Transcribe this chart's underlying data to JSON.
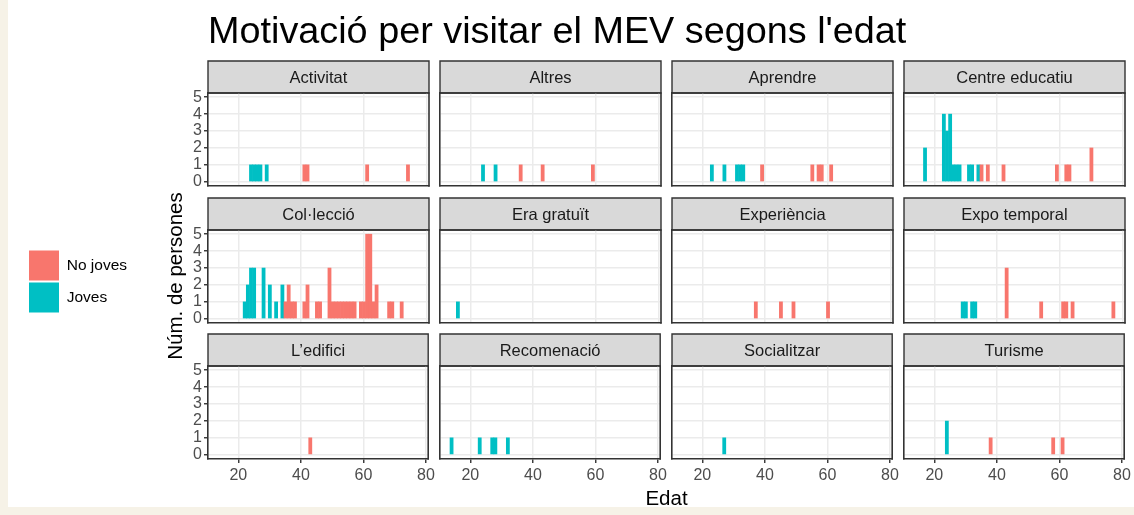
{
  "chart_data": [
    {
      "type": "other",
      "title": "Motivació per visitar el MEV segons l'edat",
      "xlabel": "Edat",
      "ylabel": "Núm. de persones"
    },
    {
      "type": "histogram",
      "title": "Activitat",
      "bins": [
        13.5,
        14.5,
        15.5,
        16.5,
        17.5,
        18.5,
        19.5,
        20.5,
        21.5,
        22.5,
        23.5,
        24.5,
        25.5,
        26.5,
        27.5,
        28.5,
        29.5,
        30.5,
        31.5,
        32.5,
        33.5,
        34.5,
        35.5,
        36.5,
        37.5,
        38.5,
        39.5,
        40.5,
        41.5,
        42.5,
        43.5,
        44.5,
        45.5,
        46.5,
        47.5,
        48.5,
        49.5,
        50.5,
        51.5,
        52.5,
        53.5,
        54.5,
        55.5,
        56.5,
        57.5,
        58.5,
        59.5,
        60.5,
        61.5,
        62.5,
        63.5,
        64.5,
        65.5,
        66.5,
        67.5,
        68.5,
        69.5,
        70.5,
        71.5,
        72.5,
        73.5,
        74.5,
        75.5,
        76.5,
        77.5
      ],
      "values": [
        0,
        0,
        0,
        0,
        0,
        0,
        0,
        0,
        0,
        0,
        1,
        1,
        1,
        1,
        0,
        1,
        0,
        0,
        0,
        0,
        0,
        0,
        0,
        0,
        0,
        0,
        0,
        1,
        1,
        0,
        0,
        0,
        0,
        0,
        0,
        0,
        0,
        0,
        0,
        0,
        0,
        0,
        0,
        0,
        0,
        0,
        0,
        1,
        0,
        0,
        0,
        0,
        0,
        0,
        0,
        0,
        0,
        0,
        0,
        0,
        1,
        0,
        0,
        0
      ],
      "colors": [
        null,
        null,
        null,
        null,
        null,
        null,
        null,
        null,
        null,
        null,
        "#00bfc4",
        "#00bfc4",
        "#00bfc4",
        "#00bfc4",
        null,
        "#00bfc4",
        null,
        null,
        null,
        null,
        null,
        null,
        null,
        null,
        null,
        null,
        null,
        "#f8766d",
        "#f8766d",
        null,
        null,
        null,
        null,
        null,
        null,
        null,
        null,
        null,
        null,
        null,
        null,
        null,
        null,
        null,
        null,
        null,
        null,
        "#f8766d",
        null,
        null,
        null,
        null,
        null,
        null,
        null,
        null,
        null,
        null,
        null,
        null,
        "#f8766d",
        null,
        null,
        null
      ],
      "xlim": [
        10.3,
        80.7
      ],
      "xticks": [
        20,
        40,
        60,
        80
      ],
      "ylim": [
        -0.25,
        5.25
      ],
      "yticks": [
        0,
        1,
        2,
        3,
        4,
        5
      ],
      "grid": true,
      "tick_labels": "y"
    },
    {
      "type": "bar",
      "title": "Altres",
      "stacked": true,
      "x": [
        14,
        15,
        16,
        17,
        18,
        19,
        20,
        21,
        22,
        23,
        24,
        25,
        26,
        27,
        28,
        29,
        30,
        31,
        32,
        33,
        34,
        35,
        36,
        37,
        38,
        39,
        40,
        41,
        42,
        43,
        44,
        45,
        46,
        47,
        48,
        49,
        50,
        51,
        52,
        53,
        54,
        55,
        56,
        57,
        58,
        59,
        60,
        61,
        62,
        63,
        64,
        65,
        66,
        67,
        68,
        69,
        70,
        71,
        72,
        73,
        74,
        75,
        76,
        77
      ],
      "series": [
        {
          "color": "#f8766d",
          "values": [
            0,
            0,
            0,
            0,
            0,
            0,
            0,
            0,
            0,
            0,
            0,
            0,
            0,
            0,
            0,
            0,
            0,
            0,
            0,
            0,
            0,
            0,
            1,
            0,
            0,
            0,
            0,
            0,
            0,
            1,
            0,
            0,
            0,
            0,
            0,
            0,
            0,
            0,
            0,
            0,
            0,
            0,
            0,
            0,
            0,
            1,
            0,
            0,
            0,
            0,
            0,
            0,
            0,
            0,
            0,
            0,
            0,
            0,
            0,
            0,
            0,
            0,
            0,
            0
          ]
        },
        {
          "color": "#00bfc4",
          "values": [
            0,
            0,
            0,
            0,
            0,
            0,
            0,
            0,
            0,
            0,
            1,
            0,
            0,
            0,
            1,
            0,
            0,
            0,
            0,
            0,
            0,
            0,
            0,
            0,
            0,
            0,
            0,
            0,
            0,
            0,
            0,
            0,
            0,
            0,
            0,
            0,
            0,
            0,
            0,
            0,
            0,
            0,
            0,
            0,
            0,
            0,
            0,
            0,
            0,
            0,
            0,
            0,
            0,
            0,
            0,
            0,
            0,
            0,
            0,
            0,
            0,
            0,
            0,
            0
          ]
        }
      ],
      "xlim": [
        10.3,
        80.7
      ],
      "xticks": [
        20,
        40,
        60,
        80
      ],
      "ylim": [
        -0.25,
        5.25
      ],
      "yticks": [
        0,
        1,
        2,
        3,
        4,
        5
      ],
      "grid": true,
      "tick_labels": false
    },
    {
      "type": "bar",
      "title": "Aprendre",
      "stacked": true,
      "x": [
        14,
        15,
        16,
        17,
        18,
        19,
        20,
        21,
        22,
        23,
        24,
        25,
        26,
        27,
        28,
        29,
        30,
        31,
        32,
        33,
        34,
        35,
        36,
        37,
        38,
        39,
        40,
        41,
        42,
        43,
        44,
        45,
        46,
        47,
        48,
        49,
        50,
        51,
        52,
        53,
        54,
        55,
        56,
        57,
        58,
        59,
        60,
        61,
        62,
        63,
        64,
        65,
        66,
        67,
        68,
        69,
        70,
        71,
        72,
        73,
        74,
        75,
        76,
        77
      ],
      "series": [
        {
          "color": "#f8766d",
          "values": [
            0,
            0,
            0,
            0,
            0,
            0,
            0,
            0,
            0,
            0,
            0,
            0,
            0,
            0,
            0,
            0,
            0,
            0,
            0,
            0,
            0,
            0,
            0,
            0,
            0,
            1,
            0,
            0,
            0,
            0,
            0,
            0,
            0,
            0,
            0,
            0,
            0,
            0,
            0,
            0,
            0,
            1,
            0,
            1,
            1,
            0,
            0,
            1,
            0,
            0,
            0,
            0,
            0,
            0,
            0,
            0,
            0,
            0,
            0,
            0,
            0,
            0,
            0,
            0
          ]
        },
        {
          "color": "#00bfc4",
          "values": [
            0,
            0,
            0,
            0,
            0,
            0,
            0,
            0,
            0,
            1,
            0,
            0,
            0,
            1,
            0,
            0,
            0,
            1,
            1,
            1,
            0,
            0,
            0,
            0,
            0,
            0,
            0,
            0,
            0,
            0,
            0,
            0,
            0,
            0,
            0,
            0,
            0,
            0,
            0,
            0,
            0,
            0,
            0,
            0,
            0,
            0,
            0,
            0,
            0,
            0,
            0,
            0,
            0,
            0,
            0,
            0,
            0,
            0,
            0,
            0,
            0,
            0,
            0,
            0
          ]
        }
      ],
      "xlim": [
        10.3,
        80.7
      ],
      "xticks": [
        20,
        40,
        60,
        80
      ],
      "ylim": [
        -0.25,
        5.25
      ],
      "yticks": [
        0,
        1,
        2,
        3,
        4,
        5
      ],
      "grid": true,
      "tick_labels": false
    },
    {
      "type": "bar",
      "title": "Centre educatiu",
      "stacked": true,
      "x": [
        14,
        15,
        16,
        17,
        18,
        19,
        20,
        21,
        22,
        23,
        24,
        25,
        26,
        27,
        28,
        29,
        30,
        31,
        32,
        33,
        34,
        35,
        36,
        37,
        38,
        39,
        40,
        41,
        42,
        43,
        44,
        45,
        46,
        47,
        48,
        49,
        50,
        51,
        52,
        53,
        54,
        55,
        56,
        57,
        58,
        59,
        60,
        61,
        62,
        63,
        64,
        65,
        66,
        67,
        68,
        69,
        70,
        71,
        72,
        73,
        74,
        75,
        76,
        77
      ],
      "series": [
        {
          "color": "#f8766d",
          "values": [
            0,
            0,
            0,
            0,
            0,
            0,
            0,
            0,
            0,
            0,
            0,
            0,
            0,
            0,
            0,
            0,
            0,
            0,
            0,
            0,
            0,
            1,
            0,
            1,
            0,
            0,
            0,
            0,
            1,
            0,
            0,
            0,
            0,
            0,
            0,
            0,
            0,
            0,
            0,
            0,
            0,
            0,
            0,
            0,
            0,
            1,
            0,
            0,
            1,
            1,
            0,
            0,
            0,
            0,
            0,
            0,
            2,
            0,
            0,
            0,
            0,
            0,
            0,
            0
          ]
        },
        {
          "color": "#00bfc4",
          "values": [
            0,
            0,
            0,
            2,
            0,
            0,
            0,
            0,
            0,
            4,
            3,
            4,
            1,
            1,
            1,
            0,
            0,
            1,
            1,
            0,
            1,
            0,
            0,
            0,
            0,
            0,
            0,
            0,
            0,
            0,
            0,
            0,
            0,
            0,
            0,
            0,
            0,
            0,
            0,
            0,
            0,
            0,
            0,
            0,
            0,
            0,
            0,
            0,
            0,
            0,
            0,
            0,
            0,
            0,
            0,
            0,
            0,
            0,
            0,
            0,
            0,
            0,
            0,
            0
          ]
        }
      ],
      "xlim": [
        10.3,
        80.7
      ],
      "xticks": [
        20,
        40,
        60,
        80
      ],
      "ylim": [
        -0.25,
        5.25
      ],
      "yticks": [
        0,
        1,
        2,
        3,
        4,
        5
      ],
      "grid": true,
      "tick_labels": false
    },
    {
      "type": "bar",
      "title": "Col·lecció",
      "stacked": true,
      "legend": "left",
      "x": [
        14,
        15,
        16,
        17,
        18,
        19,
        20,
        21,
        22,
        23,
        24,
        25,
        26,
        27,
        28,
        29,
        30,
        31,
        32,
        33,
        34,
        35,
        36,
        37,
        38,
        39,
        40,
        41,
        42,
        43,
        44,
        45,
        46,
        47,
        48,
        49,
        50,
        51,
        52,
        53,
        54,
        55,
        56,
        57,
        58,
        59,
        60,
        61,
        62,
        63,
        64,
        65,
        66,
        67,
        68,
        69,
        70,
        71,
        72,
        73,
        74,
        75,
        76,
        77
      ],
      "series": [
        {
          "name": "No joves",
          "color": "#f8766d",
          "values": [
            0,
            0,
            0,
            0,
            0,
            0,
            0,
            0,
            0,
            0,
            0,
            0,
            0,
            0,
            0,
            0,
            0,
            0,
            0,
            0,
            0,
            1,
            2,
            1,
            1,
            0,
            0,
            1,
            2,
            0,
            0,
            1,
            1,
            0,
            0,
            3,
            1,
            1,
            1,
            1,
            1,
            1,
            1,
            1,
            0,
            1,
            1,
            5,
            5,
            1,
            2,
            0,
            0,
            0,
            1,
            1,
            0,
            0,
            1,
            0,
            0,
            0,
            0,
            0
          ]
        },
        {
          "name": "Joves",
          "color": "#00bfc4",
          "values": [
            0,
            0,
            0,
            0,
            0,
            0,
            0,
            0,
            1,
            2,
            3,
            3,
            0,
            0,
            3,
            0,
            2,
            0,
            1,
            0,
            2,
            0,
            0,
            0,
            0,
            0,
            0,
            0,
            0,
            0,
            0,
            0,
            0,
            0,
            0,
            0,
            0,
            0,
            0,
            0,
            0,
            0,
            0,
            0,
            0,
            0,
            0,
            0,
            0,
            0,
            0,
            0,
            0,
            0,
            0,
            0,
            0,
            0,
            0,
            0,
            0,
            0,
            0,
            0
          ]
        }
      ],
      "xlim": [
        10.3,
        80.7
      ],
      "xticks": [
        20,
        40,
        60,
        80
      ],
      "ylim": [
        -0.25,
        5.25
      ],
      "yticks": [
        0,
        1,
        2,
        3,
        4,
        5
      ],
      "grid": true,
      "tick_labels": "y"
    },
    {
      "type": "bar",
      "title": "Era gratuït",
      "stacked": true,
      "x": [
        14,
        15,
        16,
        17,
        18,
        19,
        20,
        21,
        22,
        23,
        24,
        25,
        26,
        27,
        28,
        29,
        30,
        31,
        32,
        33,
        34,
        35,
        36,
        37,
        38,
        39,
        40,
        41,
        42,
        43,
        44,
        45,
        46,
        47,
        48,
        49,
        50,
        51,
        52,
        53,
        54,
        55,
        56,
        57,
        58,
        59,
        60,
        61,
        62,
        63,
        64,
        65,
        66,
        67,
        68,
        69,
        70,
        71,
        72,
        73,
        74,
        75,
        76,
        77
      ],
      "series": [
        {
          "color": "#00bfc4",
          "values": [
            0,
            0,
            1,
            0,
            0,
            0,
            0,
            0,
            0,
            0,
            0,
            0,
            0,
            0,
            0,
            0,
            0,
            0,
            0,
            0,
            0,
            0,
            0,
            0,
            0,
            0,
            0,
            0,
            0,
            0,
            0,
            0,
            0,
            0,
            0,
            0,
            0,
            0,
            0,
            0,
            0,
            0,
            0,
            0,
            0,
            0,
            0,
            0,
            0,
            0,
            0,
            0,
            0,
            0,
            0,
            0,
            0,
            0,
            0,
            0,
            0,
            0,
            0,
            0
          ]
        }
      ],
      "xlim": [
        10.3,
        80.7
      ],
      "xticks": [
        20,
        40,
        60,
        80
      ],
      "ylim": [
        -0.25,
        5.25
      ],
      "yticks": [
        0,
        1,
        2,
        3,
        4,
        5
      ],
      "grid": true,
      "tick_labels": false
    },
    {
      "type": "bar",
      "title": "Experiència",
      "stacked": true,
      "x": [
        14,
        15,
        16,
        17,
        18,
        19,
        20,
        21,
        22,
        23,
        24,
        25,
        26,
        27,
        28,
        29,
        30,
        31,
        32,
        33,
        34,
        35,
        36,
        37,
        38,
        39,
        40,
        41,
        42,
        43,
        44,
        45,
        46,
        47,
        48,
        49,
        50,
        51,
        52,
        53,
        54,
        55,
        56,
        57,
        58,
        59,
        60,
        61,
        62,
        63,
        64,
        65,
        66,
        67,
        68,
        69,
        70,
        71,
        72,
        73,
        74,
        75,
        76,
        77
      ],
      "series": [
        {
          "color": "#f8766d",
          "values": [
            0,
            0,
            0,
            0,
            0,
            0,
            0,
            0,
            0,
            0,
            0,
            0,
            0,
            0,
            0,
            0,
            0,
            0,
            0,
            0,
            0,
            0,
            0,
            1,
            0,
            0,
            0,
            0,
            0,
            0,
            0,
            1,
            0,
            0,
            0,
            1,
            0,
            0,
            0,
            0,
            0,
            0,
            0,
            0,
            0,
            0,
            1,
            0,
            0,
            0,
            0,
            0,
            0,
            0,
            0,
            0,
            0,
            0,
            0,
            0,
            0,
            0,
            0,
            0
          ]
        }
      ],
      "xlim": [
        10.3,
        80.7
      ],
      "xticks": [
        20,
        40,
        60,
        80
      ],
      "ylim": [
        -0.25,
        5.25
      ],
      "yticks": [
        0,
        1,
        2,
        3,
        4,
        5
      ],
      "grid": true,
      "tick_labels": false
    },
    {
      "type": "bar",
      "title": "Expo temporal",
      "stacked": true,
      "x": [
        14,
        15,
        16,
        17,
        18,
        19,
        20,
        21,
        22,
        23,
        24,
        25,
        26,
        27,
        28,
        29,
        30,
        31,
        32,
        33,
        34,
        35,
        36,
        37,
        38,
        39,
        40,
        41,
        42,
        43,
        44,
        45,
        46,
        47,
        48,
        49,
        50,
        51,
        52,
        53,
        54,
        55,
        56,
        57,
        58,
        59,
        60,
        61,
        62,
        63,
        64,
        65,
        66,
        67,
        68,
        69,
        70,
        71,
        72,
        73,
        74,
        75,
        76,
        77
      ],
      "series": [
        {
          "color": "#f8766d",
          "values": [
            0,
            0,
            0,
            0,
            0,
            0,
            0,
            0,
            0,
            0,
            0,
            0,
            0,
            0,
            0,
            0,
            0,
            0,
            0,
            0,
            0,
            0,
            0,
            0,
            0,
            0,
            0,
            0,
            0,
            3,
            0,
            0,
            0,
            0,
            0,
            0,
            0,
            0,
            0,
            0,
            1,
            0,
            0,
            0,
            0,
            0,
            0,
            1,
            1,
            0,
            1,
            0,
            0,
            0,
            0,
            0,
            0,
            0,
            0,
            0,
            0,
            0,
            0,
            1
          ]
        },
        {
          "color": "#00bfc4",
          "values": [
            0,
            0,
            0,
            0,
            0,
            0,
            0,
            0,
            0,
            0,
            0,
            0,
            0,
            0,
            0,
            1,
            1,
            0,
            1,
            1,
            0,
            0,
            0,
            0,
            0,
            0,
            0,
            0,
            0,
            0,
            0,
            0,
            0,
            0,
            0,
            0,
            0,
            0,
            0,
            0,
            0,
            0,
            0,
            0,
            0,
            0,
            0,
            0,
            0,
            0,
            0,
            0,
            0,
            0,
            0,
            0,
            0,
            0,
            0,
            0,
            0,
            0,
            0,
            0
          ]
        }
      ],
      "xlim": [
        10.3,
        80.7
      ],
      "xticks": [
        20,
        40,
        60,
        80
      ],
      "ylim": [
        -0.25,
        5.25
      ],
      "yticks": [
        0,
        1,
        2,
        3,
        4,
        5
      ],
      "grid": true,
      "tick_labels": false
    },
    {
      "type": "bar",
      "title": "L’edifici",
      "stacked": true,
      "x": [
        14,
        15,
        16,
        17,
        18,
        19,
        20,
        21,
        22,
        23,
        24,
        25,
        26,
        27,
        28,
        29,
        30,
        31,
        32,
        33,
        34,
        35,
        36,
        37,
        38,
        39,
        40,
        41,
        42,
        43,
        44,
        45,
        46,
        47,
        48,
        49,
        50,
        51,
        52,
        53,
        54,
        55,
        56,
        57,
        58,
        59,
        60,
        61,
        62,
        63,
        64,
        65,
        66,
        67,
        68,
        69,
        70,
        71,
        72,
        73,
        74,
        75,
        76,
        77
      ],
      "series": [
        {
          "color": "#f8766d",
          "values": [
            0,
            0,
            0,
            0,
            0,
            0,
            0,
            0,
            0,
            0,
            0,
            0,
            0,
            0,
            0,
            0,
            0,
            0,
            0,
            0,
            0,
            0,
            0,
            0,
            0,
            0,
            0,
            0,
            0,
            1,
            0,
            0,
            0,
            0,
            0,
            0,
            0,
            0,
            0,
            0,
            0,
            0,
            0,
            0,
            0,
            0,
            0,
            0,
            0,
            0,
            0,
            0,
            0,
            0,
            0,
            0,
            0,
            0,
            0,
            0,
            0,
            0,
            0,
            0
          ]
        }
      ],
      "xlim": [
        10.3,
        80.7
      ],
      "xticks": [
        20,
        40,
        60,
        80
      ],
      "ylim": [
        -0.25,
        5.25
      ],
      "yticks": [
        0,
        1,
        2,
        3,
        4,
        5
      ],
      "grid": true
    },
    {
      "type": "bar",
      "title": "Recomenació",
      "stacked": true,
      "x": [
        14,
        15,
        16,
        17,
        18,
        19,
        20,
        21,
        22,
        23,
        24,
        25,
        26,
        27,
        28,
        29,
        30,
        31,
        32,
        33,
        34,
        35,
        36,
        37,
        38,
        39,
        40,
        41,
        42,
        43,
        44,
        45,
        46,
        47,
        48,
        49,
        50,
        51,
        52,
        53,
        54,
        55,
        56,
        57,
        58,
        59,
        60,
        61,
        62,
        63,
        64,
        65,
        66,
        67,
        68,
        69,
        70,
        71,
        72,
        73,
        74,
        75,
        76,
        77
      ],
      "series": [
        {
          "color": "#00bfc4",
          "values": [
            1,
            0,
            0,
            0,
            0,
            0,
            0,
            0,
            0,
            1,
            0,
            0,
            0,
            1,
            1,
            0,
            0,
            0,
            1,
            0,
            0,
            0,
            0,
            0,
            0,
            0,
            0,
            0,
            0,
            0,
            0,
            0,
            0,
            0,
            0,
            0,
            0,
            0,
            0,
            0,
            0,
            0,
            0,
            0,
            0,
            0,
            0,
            0,
            0,
            0,
            0,
            0,
            0,
            0,
            0,
            0,
            0,
            0,
            0,
            0,
            0,
            0,
            0,
            0
          ]
        }
      ],
      "xlim": [
        10.3,
        80.7
      ],
      "xticks": [
        20,
        40,
        60,
        80
      ],
      "ylim": [
        -0.25,
        5.25
      ],
      "yticks": [
        0,
        1,
        2,
        3,
        4,
        5
      ],
      "grid": true,
      "tick_labels": "x"
    },
    {
      "type": "bar",
      "title": "Socialitzar",
      "stacked": true,
      "x": [
        14,
        15,
        16,
        17,
        18,
        19,
        20,
        21,
        22,
        23,
        24,
        25,
        26,
        27,
        28,
        29,
        30,
        31,
        32,
        33,
        34,
        35,
        36,
        37,
        38,
        39,
        40,
        41,
        42,
        43,
        44,
        45,
        46,
        47,
        48,
        49,
        50,
        51,
        52,
        53,
        54,
        55,
        56,
        57,
        58,
        59,
        60,
        61,
        62,
        63,
        64,
        65,
        66,
        67,
        68,
        69,
        70,
        71,
        72,
        73,
        74,
        75,
        76,
        77
      ],
      "series": [
        {
          "color": "#00bfc4",
          "values": [
            0,
            0,
            0,
            0,
            0,
            0,
            0,
            0,
            0,
            0,
            0,
            0,
            0,
            1,
            0,
            0,
            0,
            0,
            0,
            0,
            0,
            0,
            0,
            0,
            0,
            0,
            0,
            0,
            0,
            0,
            0,
            0,
            0,
            0,
            0,
            0,
            0,
            0,
            0,
            0,
            0,
            0,
            0,
            0,
            0,
            0,
            0,
            0,
            0,
            0,
            0,
            0,
            0,
            0,
            0,
            0,
            0,
            0,
            0,
            0,
            0,
            0,
            0,
            0
          ]
        }
      ],
      "xlim": [
        10.3,
        80.7
      ],
      "xticks": [
        20,
        40,
        60,
        80
      ],
      "ylim": [
        -0.25,
        5.25
      ],
      "yticks": [
        0,
        1,
        2,
        3,
        4,
        5
      ],
      "grid": true,
      "tick_labels": "x"
    },
    {
      "type": "bar",
      "title": "Turisme",
      "stacked": true,
      "x": [
        14,
        15,
        16,
        17,
        18,
        19,
        20,
        21,
        22,
        23,
        24,
        25,
        26,
        27,
        28,
        29,
        30,
        31,
        32,
        33,
        34,
        35,
        36,
        37,
        38,
        39,
        40,
        41,
        42,
        43,
        44,
        45,
        46,
        47,
        48,
        49,
        50,
        51,
        52,
        53,
        54,
        55,
        56,
        57,
        58,
        59,
        60,
        61,
        62,
        63,
        64,
        65,
        66,
        67,
        68,
        69,
        70,
        71,
        72,
        73,
        74,
        75,
        76,
        77
      ],
      "series": [
        {
          "color": "#f8766d",
          "values": [
            0,
            0,
            0,
            0,
            0,
            0,
            0,
            0,
            0,
            0,
            0,
            0,
            0,
            0,
            0,
            0,
            0,
            0,
            0,
            0,
            0,
            0,
            0,
            0,
            1,
            0,
            0,
            0,
            0,
            0,
            0,
            0,
            0,
            0,
            0,
            0,
            0,
            0,
            0,
            0,
            0,
            0,
            0,
            0,
            1,
            0,
            0,
            1,
            0,
            0,
            0,
            0,
            0,
            0,
            0,
            0,
            0,
            0,
            0,
            0,
            0,
            0,
            0,
            0
          ]
        },
        {
          "color": "#00bfc4",
          "values": [
            0,
            0,
            0,
            0,
            0,
            0,
            0,
            0,
            0,
            0,
            2,
            0,
            0,
            0,
            0,
            0,
            0,
            0,
            0,
            0,
            0,
            0,
            0,
            0,
            0,
            0,
            0,
            0,
            0,
            0,
            0,
            0,
            0,
            0,
            0,
            0,
            0,
            0,
            0,
            0,
            0,
            0,
            0,
            0,
            0,
            0,
            0,
            0,
            0,
            0,
            0,
            0,
            0,
            0,
            0,
            0,
            0,
            0,
            0,
            0,
            0,
            0,
            0,
            0
          ]
        }
      ],
      "xlim": [
        10.3,
        80.7
      ],
      "xticks": [
        20,
        40,
        60,
        80
      ],
      "ylim": [
        -0.25,
        5.25
      ],
      "yticks": [
        0,
        1,
        2,
        3,
        4,
        5
      ],
      "grid": true,
      "tick_labels": "x"
    }
  ]
}
